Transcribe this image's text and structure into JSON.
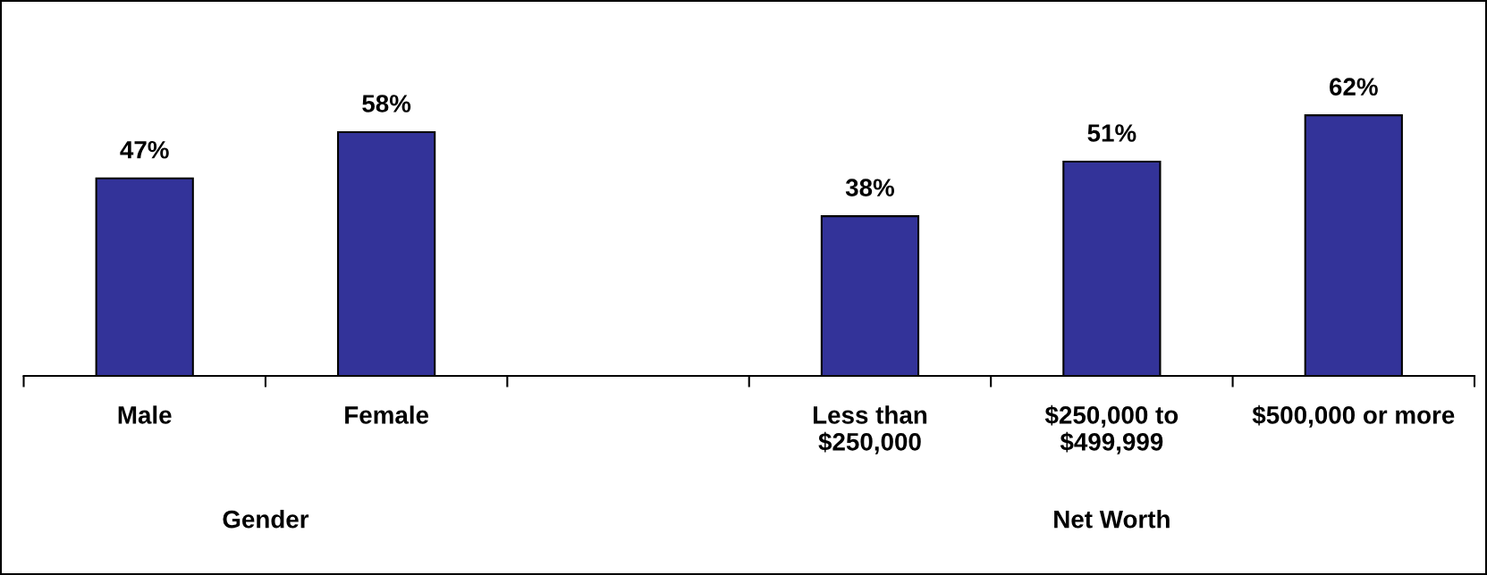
{
  "chart_data": {
    "type": "bar",
    "categories": [
      "Male",
      "Female",
      null,
      "Less than\n$250,000",
      "$250,000 to\n$499,999",
      "$500,000 or more"
    ],
    "values": [
      47,
      58,
      null,
      38,
      51,
      62
    ],
    "value_labels": [
      "47%",
      "58%",
      null,
      "38%",
      "51%",
      "62%"
    ],
    "color": "#333399",
    "annotations": [
      "Gender",
      "Net Worth"
    ]
  }
}
